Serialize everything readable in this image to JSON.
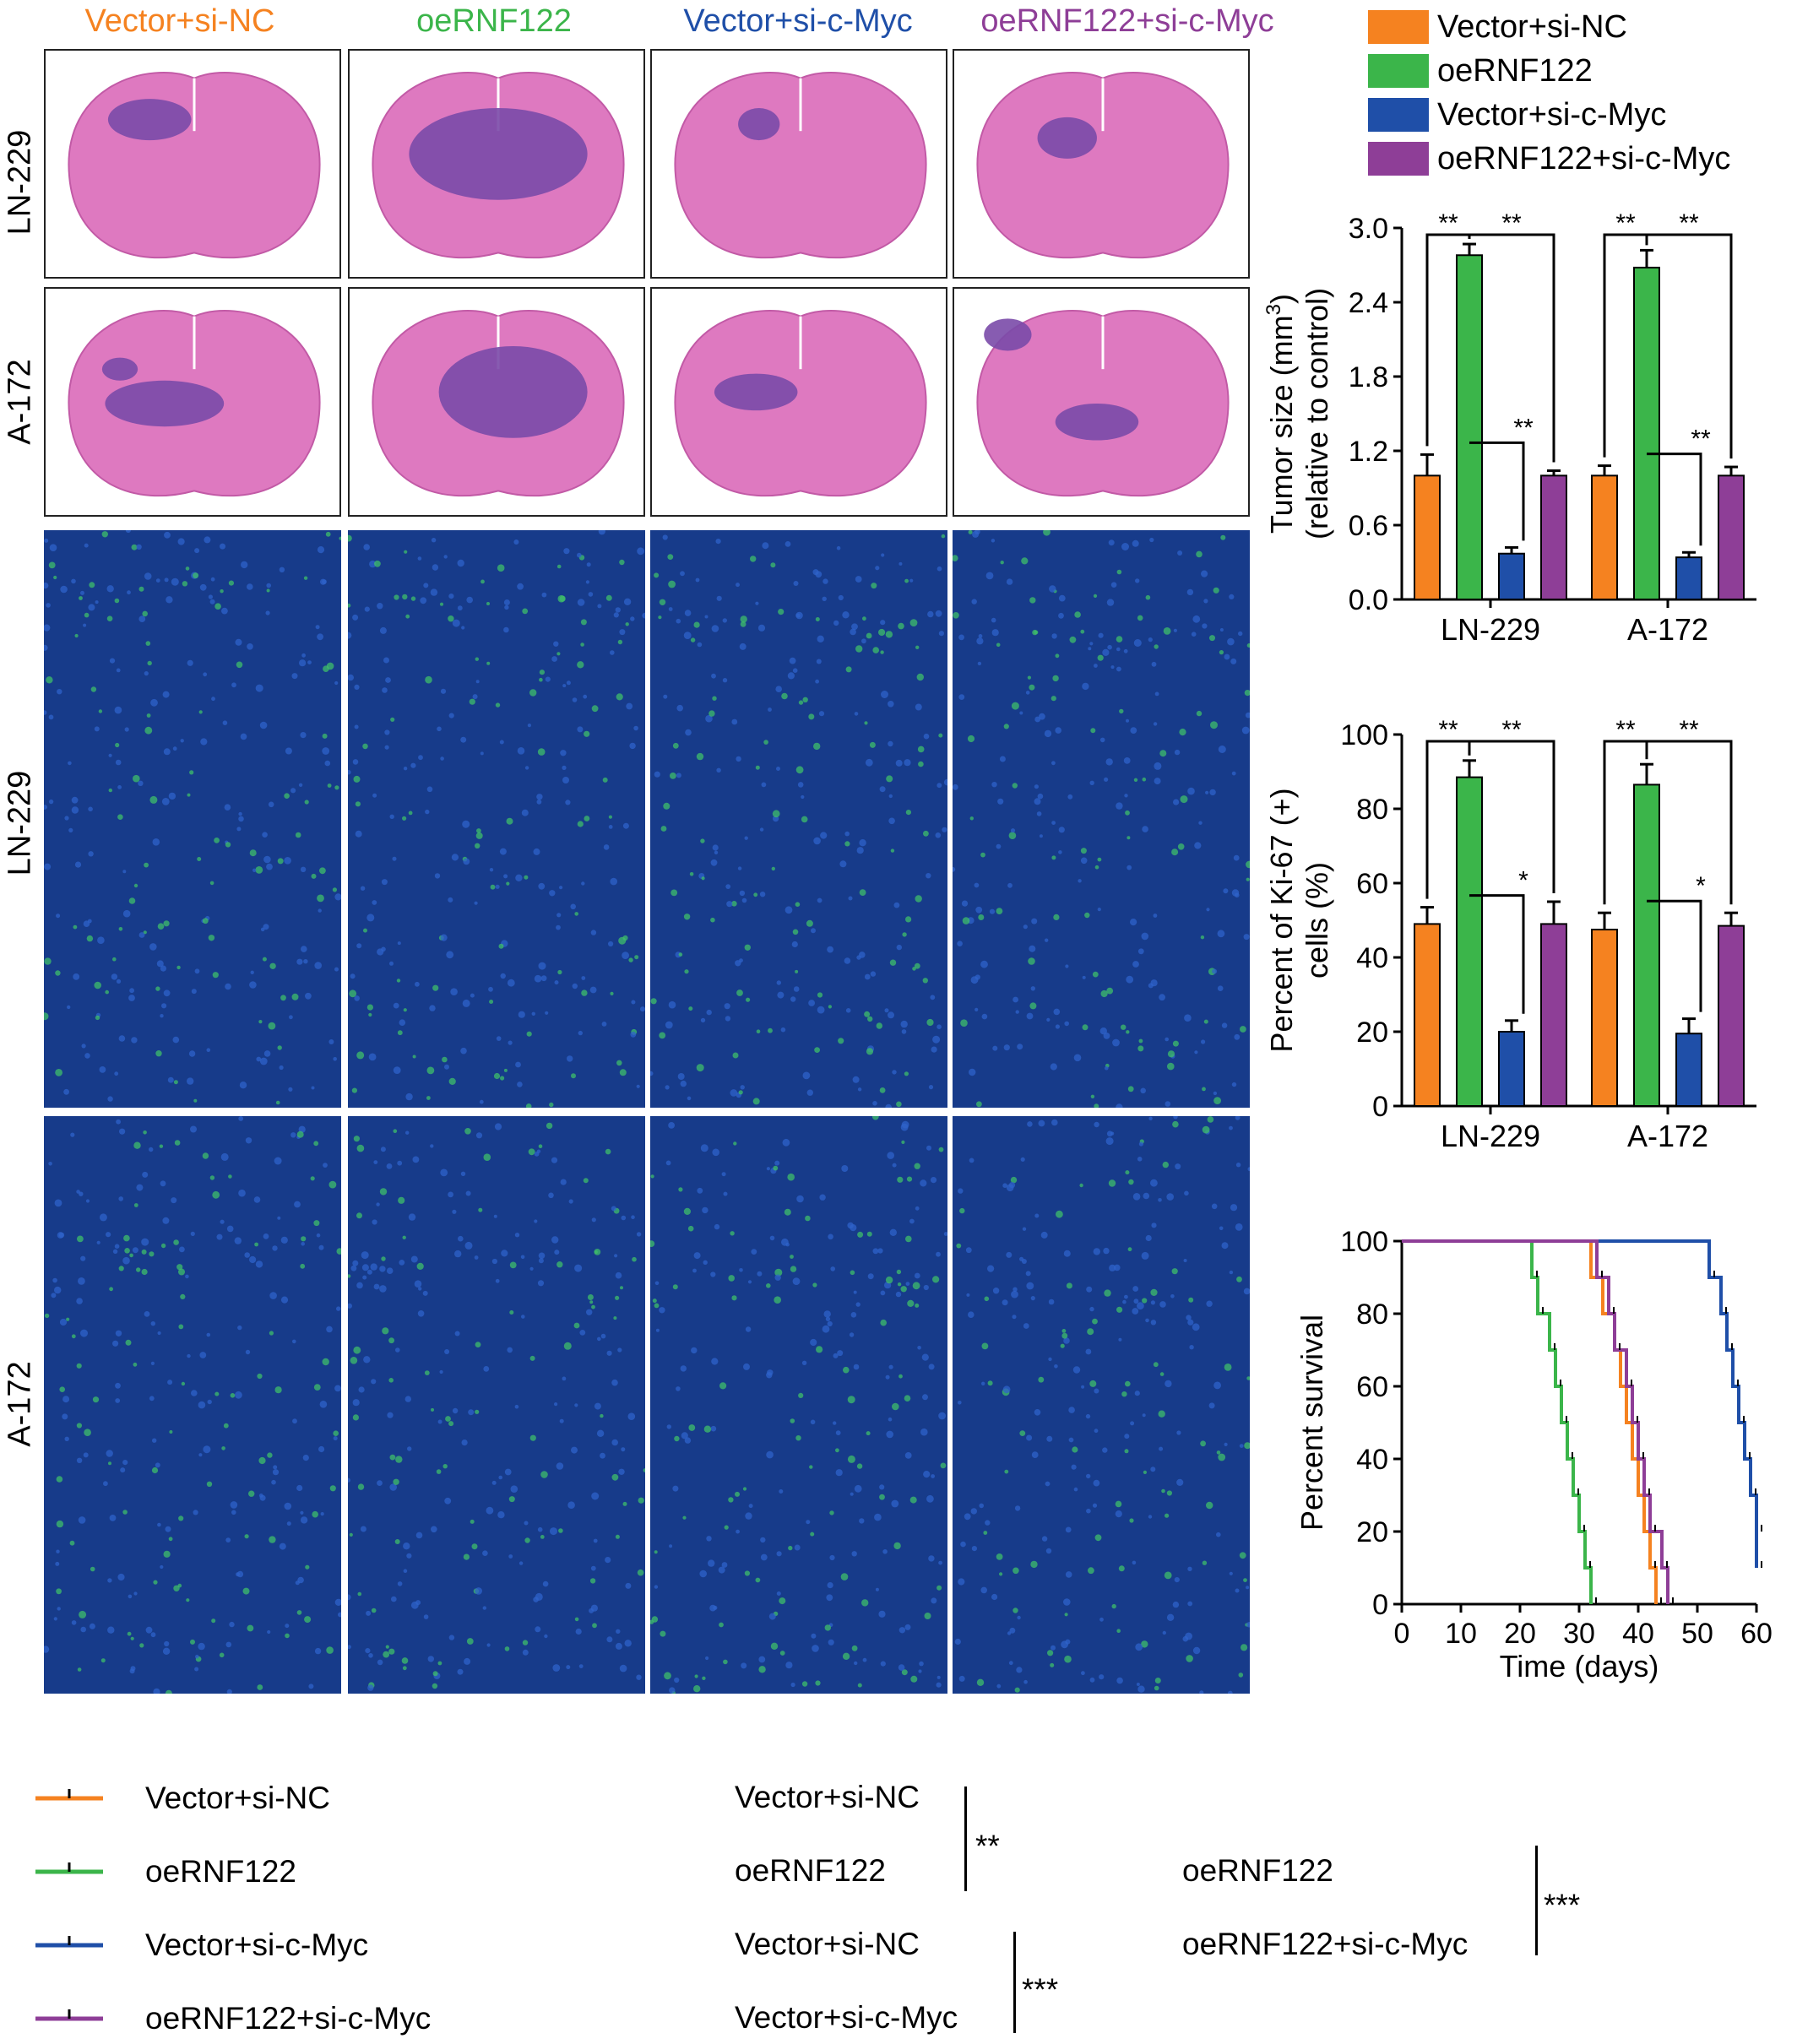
{
  "groups": [
    "Vector+si-NC",
    "oeRNF122",
    "Vector+si-c-Myc",
    "oeRNF122+si-c-Myc"
  ],
  "group_colors": [
    "#f58220",
    "#3bb54a",
    "#1f4fa8",
    "#8e3e97"
  ],
  "row_labels": {
    "he_1": "LN-229",
    "he_2": "A-172",
    "if_1": "LN-229",
    "if_2": "A-172"
  },
  "chart_data": [
    {
      "type": "bar",
      "categories": [
        "LN-229",
        "A-172"
      ],
      "series": [
        {
          "name": "Vector+si-NC",
          "values": [
            1.0,
            1.0
          ],
          "errors": [
            0.17,
            0.08
          ]
        },
        {
          "name": "oeRNF122",
          "values": [
            2.78,
            2.68
          ],
          "errors": [
            0.09,
            0.14
          ]
        },
        {
          "name": "Vector+si-c-Myc",
          "values": [
            0.37,
            0.34
          ],
          "errors": [
            0.05,
            0.04
          ]
        },
        {
          "name": "oeRNF122+si-c-Myc",
          "values": [
            1.0,
            1.0
          ],
          "errors": [
            0.04,
            0.07
          ]
        }
      ],
      "ylabel_line1": "Tumor size (mm",
      "ylabel_sup": "3",
      "ylabel_line1_end": ")",
      "ylabel_line2": "(relative to control)",
      "ylim": [
        0,
        3.0
      ],
      "yticks": [
        "0.0",
        "0.6",
        "1.2",
        "1.8",
        "2.4",
        "3.0"
      ],
      "ytick_values": [
        0,
        0.6,
        1.2,
        1.8,
        2.4,
        3.0
      ],
      "significance": [
        "**",
        "**",
        "**"
      ],
      "legend": "top"
    },
    {
      "type": "bar",
      "categories": [
        "LN-229",
        "A-172"
      ],
      "series": [
        {
          "name": "Vector+si-NC",
          "values": [
            49,
            47.5
          ],
          "errors": [
            4.5,
            4.5
          ]
        },
        {
          "name": "oeRNF122",
          "values": [
            88.5,
            86.5
          ],
          "errors": [
            4.5,
            5.5
          ]
        },
        {
          "name": "Vector+si-c-Myc",
          "values": [
            20,
            19.5
          ],
          "errors": [
            3,
            4
          ]
        },
        {
          "name": "oeRNF122+si-c-Myc",
          "values": [
            49,
            48.5
          ],
          "errors": [
            6,
            3.5
          ]
        }
      ],
      "ylabel_line1": "Percent of Ki-67 (+)",
      "ylabel_line2": "cells (%)",
      "ylim": [
        0,
        100
      ],
      "yticks": [
        "0",
        "20",
        "40",
        "60",
        "80",
        "100"
      ],
      "ytick_values": [
        0,
        20,
        40,
        60,
        80,
        100
      ],
      "significance": [
        "**",
        "**",
        "*"
      ]
    },
    {
      "type": "line",
      "xlabel": "Time (days)",
      "ylabel": "Percent survival",
      "xlim": [
        0,
        60
      ],
      "ylim": [
        0,
        100
      ],
      "xticks": [
        "0",
        "10",
        "20",
        "30",
        "40",
        "50",
        "60"
      ],
      "xtick_values": [
        0,
        10,
        20,
        30,
        40,
        50,
        60
      ],
      "yticks": [
        "0",
        "20",
        "40",
        "60",
        "80",
        "100"
      ],
      "ytick_values": [
        0,
        20,
        40,
        60,
        80,
        100
      ],
      "series": [
        {
          "name": "Vector+si-NC",
          "steps": [
            [
              32,
              90
            ],
            [
              34,
              80
            ],
            [
              36,
              70
            ],
            [
              37,
              60
            ],
            [
              38,
              50
            ],
            [
              39,
              40
            ],
            [
              40,
              30
            ],
            [
              41,
              20
            ],
            [
              42,
              10
            ],
            [
              43,
              0
            ]
          ]
        },
        {
          "name": "oeRNF122",
          "steps": [
            [
              22,
              90
            ],
            [
              23,
              80
            ],
            [
              25,
              70
            ],
            [
              26,
              60
            ],
            [
              27,
              50
            ],
            [
              28,
              40
            ],
            [
              29,
              30
            ],
            [
              30,
              20
            ],
            [
              31,
              10
            ],
            [
              32,
              0
            ]
          ]
        },
        {
          "name": "Vector+si-c-Myc",
          "steps": [
            [
              52,
              90
            ],
            [
              54,
              80
            ],
            [
              55,
              70
            ],
            [
              56,
              60
            ],
            [
              57,
              50
            ],
            [
              58,
              40
            ],
            [
              59,
              30
            ],
            [
              60,
              20
            ],
            [
              60,
              10
            ]
          ]
        },
        {
          "name": "oeRNF122+si-c-Myc",
          "steps": [
            [
              33,
              90
            ],
            [
              35,
              80
            ],
            [
              36,
              70
            ],
            [
              38,
              60
            ],
            [
              39,
              50
            ],
            [
              40,
              40
            ],
            [
              41,
              30
            ],
            [
              42,
              20
            ],
            [
              44,
              10
            ],
            [
              45,
              0
            ]
          ]
        }
      ],
      "comparisons": [
        {
          "a": "Vector+si-NC",
          "b": "oeRNF122",
          "sig": "**"
        },
        {
          "a": "Vector+si-NC",
          "b": "Vector+si-c-Myc",
          "sig": "***"
        },
        {
          "a": "oeRNF122",
          "b": "oeRNF122+si-c-Myc",
          "sig": "***"
        }
      ]
    }
  ]
}
